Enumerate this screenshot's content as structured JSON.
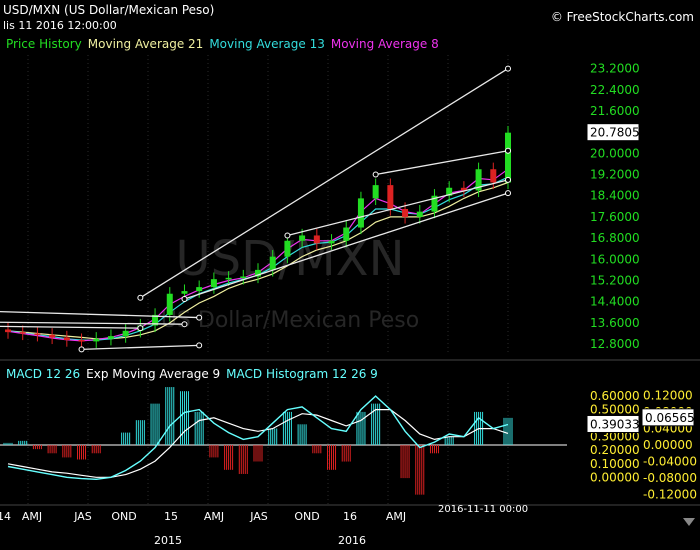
{
  "header": {
    "title": "USD/MXN (US Dollar/Mexican Peso)",
    "date": "lis 11 2016 12:00:00",
    "site": "© FreeStockCharts.com"
  },
  "watermark": {
    "symbol": "USD/MXN",
    "name": "US Dollar/Mexican Peso"
  },
  "price_legend": [
    {
      "label": "Price History",
      "color": "#22dd22"
    },
    {
      "label": "Moving Average 21",
      "color": "#f0f0a0"
    },
    {
      "label": "Moving Average 13",
      "color": "#33dddd"
    },
    {
      "label": "Moving Average 8",
      "color": "#ee33ee"
    }
  ],
  "macd_legend": [
    {
      "label": "MACD 12 26",
      "color": "#66ffff"
    },
    {
      "label": "Exp Moving Average 9",
      "color": "#ffffff"
    },
    {
      "label": "MACD Histogram 12 26 9",
      "color": "#66ffff"
    }
  ],
  "price_axis": {
    "ticks": [
      "23.2000",
      "22.4000",
      "21.6000",
      "20.8000",
      "20.0000",
      "19.2000",
      "18.4000",
      "17.6000",
      "16.8000",
      "16.0000",
      "15.2000",
      "14.4000",
      "13.6000",
      "12.8000"
    ],
    "current_label": "20.7805"
  },
  "macd_axis": {
    "left_ticks": [
      "0.60000",
      "0.50000",
      "0.40000",
      "0.30000",
      "0.20000",
      "0.10000",
      "0.00000"
    ],
    "right_ticks": [
      "0.12000",
      "0.08000",
      "0.04000",
      "0.00000",
      "-0.04000",
      "-0.08000",
      "-0.12000"
    ],
    "macd_label": "0.39033",
    "hist_label": "0.06565"
  },
  "x_axis": {
    "labels": [
      "14",
      "AMJ",
      "JAS",
      "OND",
      "15",
      "AMJ",
      "JAS",
      "OND",
      "16",
      "AMJ"
    ],
    "years": [
      "2015",
      "2016"
    ],
    "cursor_label": "2016-11-11 00:00"
  },
  "chart_data": {
    "type": "candlestick",
    "title": "USD/MXN (US Dollar/Mexican Peso)",
    "interval": "weekly",
    "period": "2014-01 to 2016-11-11",
    "ylim_price": [
      12.5,
      23.6
    ],
    "price_series": {
      "x": [
        "2014-01",
        "2014-02",
        "2014-03",
        "2014-04",
        "2014-05",
        "2014-06",
        "2014-07",
        "2014-08",
        "2014-09",
        "2014-10",
        "2014-11",
        "2014-12",
        "2015-01",
        "2015-02",
        "2015-03",
        "2015-04",
        "2015-05",
        "2015-06",
        "2015-07",
        "2015-08",
        "2015-09",
        "2015-10",
        "2015-11",
        "2015-12",
        "2016-01",
        "2016-02",
        "2016-03",
        "2016-04",
        "2016-05",
        "2016-06",
        "2016-07",
        "2016-08",
        "2016-09",
        "2016-10",
        "2016-11"
      ],
      "close": [
        13.25,
        13.2,
        13.15,
        13.05,
        12.95,
        12.9,
        13.0,
        13.1,
        13.3,
        13.5,
        13.9,
        14.7,
        14.8,
        14.95,
        15.25,
        15.3,
        15.35,
        15.6,
        16.1,
        16.7,
        16.9,
        16.6,
        16.7,
        17.2,
        18.3,
        18.8,
        17.9,
        17.6,
        17.8,
        18.4,
        18.7,
        18.6,
        19.4,
        18.9,
        20.7805
      ]
    },
    "ma_21": [
      13.3,
      13.25,
      13.2,
      13.15,
      13.1,
      13.05,
      13.0,
      13.0,
      13.05,
      13.15,
      13.3,
      13.6,
      14.0,
      14.35,
      14.6,
      14.9,
      15.1,
      15.25,
      15.45,
      15.75,
      16.1,
      16.35,
      16.5,
      16.7,
      17.0,
      17.4,
      17.6,
      17.6,
      17.6,
      17.75,
      18.0,
      18.3,
      18.55,
      18.7,
      18.9
    ],
    "ma_13": [
      13.3,
      13.22,
      13.15,
      13.08,
      13.0,
      12.95,
      12.95,
      13.0,
      13.12,
      13.3,
      13.55,
      14.0,
      14.4,
      14.7,
      14.9,
      15.1,
      15.25,
      15.4,
      15.7,
      16.1,
      16.45,
      16.6,
      16.65,
      16.9,
      17.4,
      17.9,
      17.9,
      17.75,
      17.7,
      17.95,
      18.25,
      18.45,
      18.8,
      18.85,
      19.1
    ],
    "ma_8": [
      13.28,
      13.2,
      13.12,
      13.03,
      12.96,
      12.92,
      12.97,
      13.05,
      13.2,
      13.42,
      13.75,
      14.3,
      14.6,
      14.85,
      15.05,
      15.2,
      15.3,
      15.5,
      15.9,
      16.4,
      16.75,
      16.7,
      16.7,
      17.0,
      17.8,
      18.3,
      18.1,
      17.8,
      17.7,
      18.1,
      18.5,
      18.6,
      19.05,
      19.0,
      19.4
    ],
    "trendlines": [
      {
        "from": [
          "2014-10",
          14.55
        ],
        "to": [
          "2016-11",
          23.2
        ]
      },
      {
        "from": [
          "2016-02",
          19.2
        ],
        "to": [
          "2016-11",
          20.1
        ]
      },
      {
        "from": [
          "2015-08",
          16.9
        ],
        "to": [
          "2016-11",
          19.0
        ]
      },
      {
        "from": [
          "2015-01",
          14.5
        ],
        "to": [
          "2016-11",
          18.5
        ]
      },
      {
        "from": [
          "2013-08",
          14.1
        ],
        "to": [
          "2015-02",
          13.8
        ]
      },
      {
        "from": [
          "2013-08",
          13.65
        ],
        "to": [
          "2015-01",
          13.55
        ]
      },
      {
        "from": [
          "2013-08",
          13.5
        ],
        "to": [
          "2014-10",
          13.4
        ]
      },
      {
        "from": [
          "2014-06",
          12.6
        ],
        "to": [
          "2015-02",
          12.75
        ]
      }
    ],
    "macd": {
      "ylim": [
        -0.02,
        0.66
      ],
      "hist_ylim": [
        -0.145,
        0.145
      ],
      "macd_line": [
        0.08,
        0.06,
        0.04,
        0.02,
        0.0,
        -0.01,
        -0.015,
        0.0,
        0.05,
        0.12,
        0.22,
        0.38,
        0.48,
        0.5,
        0.4,
        0.33,
        0.28,
        0.3,
        0.4,
        0.5,
        0.52,
        0.44,
        0.36,
        0.34,
        0.5,
        0.6,
        0.5,
        0.34,
        0.22,
        0.26,
        0.32,
        0.3,
        0.44,
        0.36,
        0.39033
      ],
      "signal_line": [
        0.1,
        0.08,
        0.06,
        0.04,
        0.03,
        0.015,
        0.0,
        0.0,
        0.02,
        0.06,
        0.12,
        0.22,
        0.34,
        0.42,
        0.44,
        0.4,
        0.36,
        0.34,
        0.36,
        0.42,
        0.47,
        0.46,
        0.42,
        0.38,
        0.42,
        0.5,
        0.5,
        0.42,
        0.32,
        0.28,
        0.3,
        0.3,
        0.36,
        0.36,
        0.3247
      ],
      "histogram": [
        0.005,
        0.01,
        -0.01,
        -0.02,
        -0.03,
        -0.035,
        -0.02,
        0.0,
        0.03,
        0.06,
        0.1,
        0.14,
        0.13,
        0.08,
        -0.03,
        -0.06,
        -0.07,
        -0.04,
        0.04,
        0.08,
        0.05,
        -0.02,
        -0.06,
        -0.04,
        0.08,
        0.1,
        0.0,
        -0.08,
        -0.12,
        -0.02,
        0.02,
        0.0,
        0.08,
        0.0,
        0.06565
      ]
    }
  }
}
